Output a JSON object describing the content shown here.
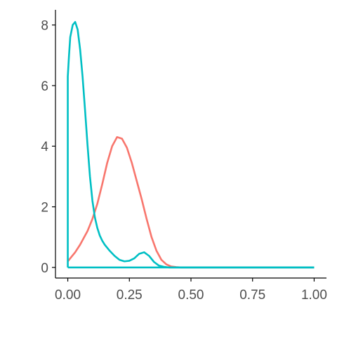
{
  "chart_data": {
    "type": "line",
    "title": "",
    "xlabel": "",
    "ylabel": "",
    "xlim": [
      -0.05,
      1.05
    ],
    "ylim": [
      -0.35,
      8.5
    ],
    "x_ticks": [
      0.0,
      0.25,
      0.5,
      0.75,
      1.0
    ],
    "x_tick_labels": [
      "0.00",
      "0.25",
      "0.50",
      "0.75",
      "1.00"
    ],
    "y_ticks": [
      0,
      2,
      4,
      6,
      8
    ],
    "y_tick_labels": [
      "0",
      "2",
      "4",
      "6",
      "8"
    ],
    "grid": false,
    "legend": "none",
    "series": [
      {
        "color": "#F8766D",
        "x": [
          0.0,
          0.01,
          0.03,
          0.05,
          0.08,
          0.1,
          0.12,
          0.14,
          0.16,
          0.18,
          0.2,
          0.22,
          0.24,
          0.26,
          0.28,
          0.3,
          0.32,
          0.34,
          0.36,
          0.38,
          0.4,
          0.42,
          0.44,
          0.46,
          0.48,
          0.5,
          0.6,
          0.75,
          1.0
        ],
        "y": [
          0.2,
          0.3,
          0.5,
          0.75,
          1.2,
          1.6,
          2.1,
          2.75,
          3.45,
          4.0,
          4.3,
          4.25,
          3.95,
          3.45,
          2.85,
          2.25,
          1.6,
          1.0,
          0.55,
          0.25,
          0.1,
          0.03,
          0.01,
          0.0,
          0.0,
          0.0,
          0.0,
          0.0,
          0.0
        ]
      },
      {
        "color": "#00BFC4",
        "x": [
          0.0,
          0.0,
          0.005,
          0.01,
          0.02,
          0.03,
          0.04,
          0.05,
          0.06,
          0.07,
          0.08,
          0.09,
          0.1,
          0.11,
          0.12,
          0.13,
          0.14,
          0.15,
          0.17,
          0.19,
          0.21,
          0.23,
          0.25,
          0.27,
          0.29,
          0.31,
          0.33,
          0.35,
          0.37,
          0.39,
          0.41,
          0.45,
          0.5,
          0.75,
          1.0
        ],
        "y": [
          0.0,
          6.3,
          7.0,
          7.6,
          8.0,
          8.1,
          7.85,
          7.2,
          6.3,
          5.2,
          4.05,
          3.0,
          2.2,
          1.65,
          1.3,
          1.05,
          0.88,
          0.75,
          0.55,
          0.38,
          0.25,
          0.2,
          0.22,
          0.3,
          0.45,
          0.5,
          0.38,
          0.18,
          0.06,
          0.02,
          0.0,
          0.0,
          0.0,
          0.0,
          0.0
        ]
      },
      {
        "color": "#00BFC4",
        "x": [
          0.0,
          1.0
        ],
        "y": [
          0.0,
          0.0
        ]
      }
    ]
  }
}
